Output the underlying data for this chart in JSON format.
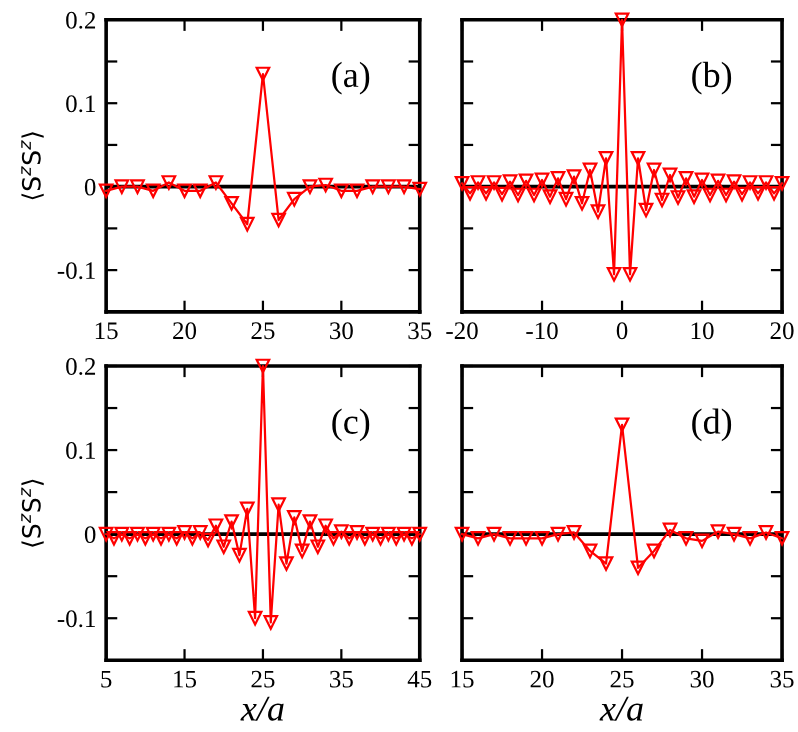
{
  "chart_data": [
    {
      "type": "line",
      "title": "(a)",
      "ylabel": "⟨S$^{z}$S$^{z}$⟩",
      "marker": "triangle",
      "line_style": "solid",
      "grid": false,
      "x": [
        15,
        16,
        17,
        18,
        19,
        20,
        21,
        22,
        23,
        24,
        25,
        26,
        27,
        28,
        29,
        30,
        31,
        32,
        33,
        34,
        35
      ],
      "series": [
        {
          "color": "#ff0000",
          "values": [
            -0.005,
            0.0,
            0.0,
            -0.005,
            0.005,
            -0.005,
            -0.005,
            0.005,
            -0.02,
            -0.045,
            0.135,
            -0.04,
            -0.015,
            0.0,
            0.002,
            -0.005,
            -0.005,
            0.0,
            0.0,
            0.0,
            -0.003
          ]
        }
      ],
      "xlim": [
        15,
        35
      ],
      "xticks": [
        15,
        20,
        25,
        30,
        35
      ],
      "ylim": [
        -0.15,
        0.2
      ],
      "yticks": [
        {
          "value": -0.1,
          "label": "-0.1"
        },
        {
          "value": -0.05,
          "label": null
        },
        0,
        {
          "value": 0.05,
          "label": null
        },
        0.1,
        {
          "value": 0.15,
          "label": null
        },
        0.2
      ],
      "ref_lines": [
        {
          "axis": "y",
          "value": 0,
          "color": "#000000"
        }
      ]
    },
    {
      "type": "line",
      "title": "(b)",
      "marker": "triangle",
      "line_style": "solid",
      "grid": false,
      "tick_labels": "x",
      "x": [
        -20,
        -19,
        -18,
        -17,
        -16,
        -15,
        -14,
        -13,
        -12,
        -11,
        -10,
        -9,
        -8,
        -7,
        -6,
        -5,
        -4,
        -3,
        -2,
        -1,
        0,
        1,
        2,
        3,
        4,
        5,
        6,
        7,
        8,
        9,
        10,
        11,
        12,
        13,
        14,
        15,
        16,
        17,
        18,
        19,
        20
      ],
      "series": [
        {
          "color": "#ff0000",
          "values": [
            0.004,
            -0.008,
            0.005,
            -0.008,
            0.005,
            -0.009,
            0.006,
            -0.01,
            0.007,
            -0.01,
            0.008,
            -0.012,
            0.01,
            -0.015,
            0.012,
            -0.02,
            0.02,
            -0.03,
            0.034,
            -0.105,
            0.2,
            -0.105,
            0.034,
            -0.028,
            0.02,
            -0.016,
            0.014,
            -0.013,
            0.01,
            -0.012,
            0.008,
            -0.01,
            0.007,
            -0.01,
            0.006,
            -0.009,
            0.005,
            -0.008,
            0.005,
            -0.008,
            0.004
          ]
        }
      ],
      "xlim": [
        -20,
        20
      ],
      "xticks": [
        {
          "value": -20,
          "label": "-20"
        },
        {
          "value": -10,
          "label": "-10"
        },
        0,
        10,
        20
      ],
      "ylim": [
        -0.15,
        0.2
      ],
      "yticks": [
        {
          "value": -0.1,
          "label": null
        },
        {
          "value": -0.05,
          "label": null
        },
        {
          "value": 0,
          "label": null
        },
        {
          "value": 0.05,
          "label": null
        },
        {
          "value": 0.1,
          "label": null
        },
        {
          "value": 0.15,
          "label": null
        },
        {
          "value": 0.2,
          "label": null
        }
      ],
      "ref_lines": [
        {
          "axis": "y",
          "value": 0,
          "color": "#000000"
        }
      ]
    },
    {
      "type": "line",
      "title": "(c)",
      "ylabel": "⟨S$^{z}$S$^{z}$⟩",
      "xlabel": "x/a",
      "marker": "triangle",
      "line_style": "solid",
      "grid": false,
      "x": [
        5,
        6,
        7,
        8,
        9,
        10,
        11,
        12,
        13,
        14,
        15,
        16,
        17,
        18,
        19,
        20,
        21,
        22,
        23,
        24,
        25,
        26,
        27,
        28,
        29,
        30,
        31,
        32,
        33,
        34,
        35,
        36,
        37,
        38,
        39,
        40,
        41,
        42,
        43,
        44,
        45
      ],
      "series": [
        {
          "color": "#ff0000",
          "values": [
            0.0,
            -0.005,
            0.0,
            -0.005,
            0.0,
            -0.005,
            0.0,
            -0.005,
            0.0,
            -0.005,
            0.002,
            -0.005,
            0.002,
            -0.007,
            0.01,
            -0.015,
            0.015,
            -0.025,
            0.03,
            -0.1,
            0.2,
            -0.105,
            0.035,
            -0.035,
            0.02,
            -0.02,
            0.015,
            -0.015,
            0.01,
            -0.005,
            0.003,
            -0.005,
            0.002,
            -0.005,
            0.0,
            -0.005,
            0.0,
            -0.005,
            0.0,
            -0.005,
            0.0
          ]
        }
      ],
      "xlim": [
        5,
        45
      ],
      "xticks": [
        5,
        15,
        25,
        35,
        45
      ],
      "ylim": [
        -0.15,
        0.2
      ],
      "yticks": [
        {
          "value": -0.1,
          "label": "-0.1"
        },
        {
          "value": -0.05,
          "label": null
        },
        0,
        {
          "value": 0.05,
          "label": null
        },
        0.1,
        {
          "value": 0.15,
          "label": null
        },
        0.2
      ],
      "ref_lines": [
        {
          "axis": "y",
          "value": 0,
          "color": "#000000"
        }
      ]
    },
    {
      "type": "line",
      "title": "(d)",
      "xlabel": "x/a",
      "marker": "triangle",
      "line_style": "solid",
      "grid": false,
      "tick_labels": "x",
      "x": [
        15,
        16,
        17,
        18,
        19,
        20,
        21,
        22,
        23,
        24,
        25,
        26,
        27,
        28,
        29,
        30,
        31,
        32,
        33,
        34,
        35
      ],
      "series": [
        {
          "color": "#ff0000",
          "values": [
            0.0,
            -0.005,
            0.0,
            -0.005,
            -0.005,
            -0.005,
            0.0,
            0.002,
            -0.02,
            -0.035,
            0.13,
            -0.04,
            -0.02,
            0.005,
            -0.005,
            -0.008,
            0.003,
            0.0,
            -0.005,
            0.002,
            -0.005
          ]
        }
      ],
      "xlim": [
        15,
        35
      ],
      "xticks": [
        15,
        20,
        25,
        30,
        35
      ],
      "ylim": [
        -0.15,
        0.2
      ],
      "yticks": [
        {
          "value": -0.1,
          "label": null
        },
        {
          "value": -0.05,
          "label": null
        },
        {
          "value": 0,
          "label": null
        },
        {
          "value": 0.05,
          "label": null
        },
        {
          "value": 0.1,
          "label": null
        },
        {
          "value": 0.15,
          "label": null
        },
        {
          "value": 0.2,
          "label": null
        }
      ],
      "ref_lines": [
        {
          "axis": "y",
          "value": 0,
          "color": "#000000"
        }
      ]
    }
  ]
}
